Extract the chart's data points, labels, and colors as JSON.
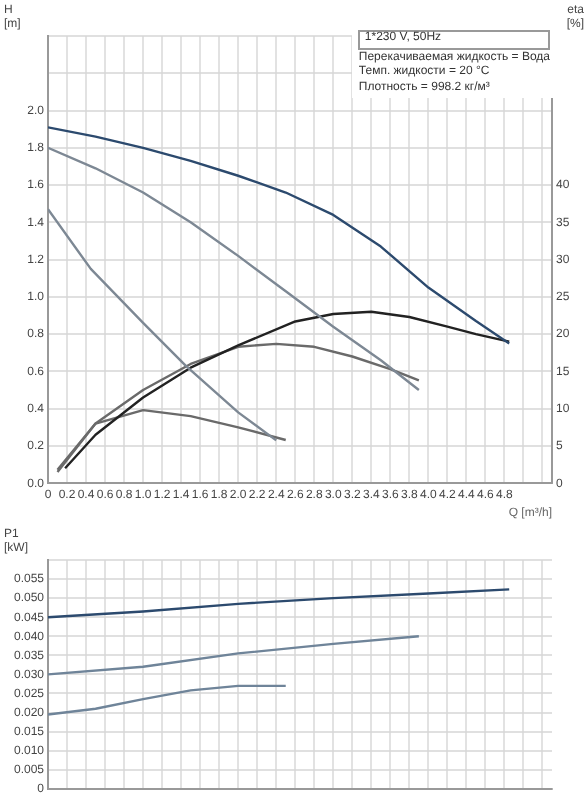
{
  "chart_data": [
    {
      "type": "line",
      "ylabel": "H [m]",
      "y2label": "eta [%]",
      "xlabel": "Q [m³/h]",
      "annotations": [
        "1*230 V, 50Hz",
        "Перекачиваемая жидкость = Вода",
        "Темп. жидкости = 20 °C",
        "Плотность = 998.2 кг/м³"
      ],
      "xlim": [
        0,
        5.3
      ],
      "xticks": [
        0,
        0.2,
        0.4,
        0.6,
        0.8,
        {
          "value": 1,
          "label": "1.0"
        },
        1.2,
        1.4,
        1.6,
        1.8,
        {
          "value": 2,
          "label": "2.0"
        },
        2.2,
        2.4,
        2.6,
        2.8,
        {
          "value": 3,
          "label": "3.0"
        },
        3.2,
        3.4,
        3.6,
        3.8,
        {
          "value": 4,
          "label": "4.0"
        },
        4.2,
        4.4,
        4.6,
        4.8,
        {
          "value": 5,
          "label": null
        },
        {
          "value": 5.2,
          "label": null
        }
      ],
      "ylim": [
        0,
        2.4
      ],
      "yticks": [
        {
          "value": 0,
          "label": "0.0"
        },
        0.2,
        0.4,
        0.6,
        0.8,
        {
          "value": 1,
          "label": "1.0"
        },
        1.2,
        1.4,
        1.6,
        1.8,
        {
          "value": 2,
          "label": "2.0"
        },
        {
          "value": 2.2,
          "label": null
        },
        {
          "value": 2.4,
          "label": null
        }
      ],
      "y2lim": [
        0,
        60
      ],
      "y2ticks": [
        0,
        5,
        10,
        15,
        20,
        25,
        30,
        35,
        40
      ],
      "grid": true,
      "legend": false,
      "marker": "none",
      "series": [
        {
          "color": "#2c4a6e",
          "x": [
            0,
            0.5,
            1,
            1.5,
            2,
            2.5,
            3,
            3.5,
            4,
            4.5,
            4.85
          ],
          "values": [
            1.91,
            1.86,
            1.8,
            1.73,
            1.65,
            1.56,
            1.44,
            1.27,
            1.05,
            0.87,
            0.75
          ]
        },
        {
          "color": "#7d8894",
          "x": [
            0,
            0.5,
            1,
            1.5,
            2,
            2.5,
            3,
            3.5,
            3.9
          ],
          "values": [
            1.8,
            1.69,
            1.56,
            1.4,
            1.22,
            1.03,
            0.84,
            0.66,
            0.5
          ]
        },
        {
          "color": "#7d8894",
          "x": [
            0,
            0.45,
            1,
            1.45,
            2,
            2.4
          ],
          "values": [
            1.47,
            1.15,
            0.86,
            0.63,
            0.38,
            0.23
          ]
        },
        {
          "color": "#222222",
          "axis": "y2",
          "x": [
            0.18,
            0.5,
            1,
            1.5,
            2,
            2.6,
            3,
            3.4,
            3.8,
            4.2,
            4.5,
            4.85
          ],
          "values": [
            2,
            6.5,
            11.5,
            15.5,
            18.5,
            21.7,
            22.7,
            23,
            22.3,
            21,
            20,
            19
          ]
        },
        {
          "color": "#6a6a6a",
          "axis": "y2",
          "x": [
            0.1,
            0.5,
            1,
            1.5,
            2,
            2.4,
            2.8,
            3.2,
            3.6,
            3.9
          ],
          "values": [
            1.5,
            8,
            12.5,
            16,
            18.3,
            18.7,
            18.3,
            17,
            15.3,
            13.8
          ]
        },
        {
          "color": "#6a6a6a",
          "axis": "y2",
          "x": [
            0.1,
            0.5,
            1,
            1.5,
            2,
            2.5
          ],
          "values": [
            1.8,
            8,
            9.8,
            9,
            7.5,
            5.8
          ]
        }
      ]
    },
    {
      "type": "line",
      "ylabel": "P1 [kW]",
      "tick_labels": "y",
      "xlim": [
        0,
        5.3
      ],
      "xticks": [
        0,
        0.2,
        0.4,
        0.6,
        0.8,
        1,
        1.2,
        1.4,
        1.6,
        1.8,
        2,
        2.2,
        2.4,
        2.6,
        2.8,
        3,
        3.2,
        3.4,
        3.6,
        3.8,
        4,
        4.2,
        4.4,
        4.6,
        4.8,
        5,
        5.2
      ],
      "ylim": [
        0,
        0.06
      ],
      "yticks": [
        0,
        0.005,
        {
          "value": 0.01,
          "label": "0.010"
        },
        0.015,
        {
          "value": 0.02,
          "label": "0.020"
        },
        0.025,
        {
          "value": 0.03,
          "label": "0.030"
        },
        0.035,
        {
          "value": 0.04,
          "label": "0.040"
        },
        0.045,
        {
          "value": 0.05,
          "label": "0.050"
        },
        0.055,
        {
          "value": 0.06,
          "label": null
        }
      ],
      "grid": true,
      "legend": false,
      "marker": "none",
      "series": [
        {
          "color": "#2c4a6e",
          "x": [
            0,
            1,
            2,
            3,
            4,
            4.85
          ],
          "values": [
            0.045,
            0.0465,
            0.0485,
            0.05,
            0.0512,
            0.0523
          ]
        },
        {
          "color": "#6f8499",
          "x": [
            0,
            1,
            2,
            3,
            3.9
          ],
          "values": [
            0.03,
            0.032,
            0.0355,
            0.038,
            0.04
          ]
        },
        {
          "color": "#6f8499",
          "x": [
            0,
            0.5,
            1,
            1.5,
            2,
            2.5
          ],
          "values": [
            0.0195,
            0.021,
            0.0235,
            0.0258,
            0.027,
            0.027
          ]
        }
      ]
    }
  ]
}
